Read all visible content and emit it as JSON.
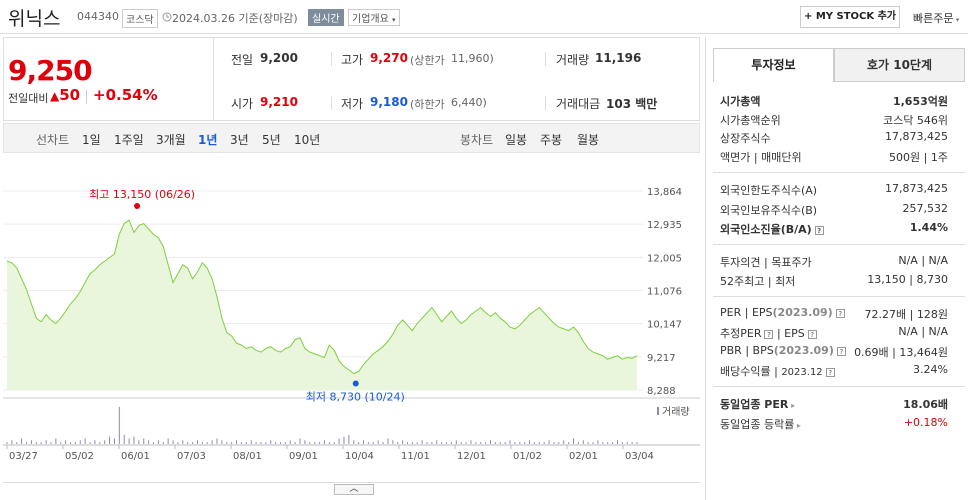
{
  "header": {
    "stock_name": "위닉스",
    "stock_code": "044340",
    "market_badge": "코스닥",
    "date_text": "2024.03.26  기준(장마감)",
    "realtime_label": "실시간",
    "company_info_label": "기업개요",
    "my_stock_label": "+ MY STOCK 추가",
    "quick_order_label": "빠른주문"
  },
  "price": {
    "current": "9,250",
    "change_label": "전일대비",
    "change_value": "50",
    "change_pct": "+0.54%"
  },
  "quotes": {
    "prev_close_label": "전일",
    "prev_close": "9,200",
    "high_label": "고가",
    "high": "9,270",
    "upper_limit_label": "(상한가",
    "upper_limit": "11,960)",
    "volume_label": "거래량",
    "volume": "11,196",
    "open_label": "시가",
    "open": "9,210",
    "low_label": "저가",
    "low": "9,180",
    "lower_limit_label": "(하한가",
    "lower_limit": "6,440)",
    "amount_label": "거래대금",
    "amount": "103 백만"
  },
  "period_bar": {
    "line_chart_label": "선차트",
    "periods": [
      "1일",
      "1주일",
      "3개월",
      "1년",
      "3년",
      "5년",
      "10년"
    ],
    "active_period": "1년",
    "candle_label": "봉차트",
    "candles": [
      "일봉",
      "주봉",
      "월봉"
    ]
  },
  "chart_data": {
    "type": "area",
    "title": "",
    "y_ticks": [
      "13,864",
      "12,935",
      "12,005",
      "11,076",
      "10,147",
      "9,217",
      "8,288"
    ],
    "ylim": [
      8288,
      13864
    ],
    "x_ticks": [
      "03/27",
      "05/02",
      "06/01",
      "07/03",
      "08/01",
      "09/01",
      "10/04",
      "11/01",
      "12/01",
      "01/02",
      "02/01",
      "03/04"
    ],
    "high_annotation": "최고 13,150 (06/26)",
    "low_annotation": "최저 8,730 (10/24)",
    "volume_legend": "거래량",
    "series": [
      {
        "values": [
          11900,
          11850,
          11700,
          11400,
          11100,
          10700,
          10300,
          10200,
          10400,
          10250,
          10150,
          10300,
          10500,
          10700,
          10850,
          11050,
          11300,
          11550,
          11650,
          11800,
          11900,
          12000,
          12100,
          12650,
          12950,
          13050,
          12700,
          12900,
          12950,
          12800,
          12650,
          12550,
          12300,
          11800,
          11300,
          11550,
          11800,
          11700,
          11400,
          11600,
          11850,
          11700,
          11400,
          10900,
          10300,
          9900,
          9800,
          9600,
          9550,
          9450,
          9500,
          9400,
          9350,
          9450,
          9500,
          9400,
          9350,
          9450,
          9500,
          9700,
          9750,
          9450,
          9350,
          9300,
          9250,
          9200,
          9550,
          9400,
          9100,
          8950,
          8850,
          8750,
          8800,
          9000,
          9150,
          9300,
          9400,
          9500,
          9650,
          9850,
          10100,
          10250,
          10100,
          9950,
          10150,
          10300,
          10450,
          10600,
          10400,
          10200,
          10350,
          10500,
          10300,
          10150,
          10250,
          10400,
          10500,
          10600,
          10450,
          10350,
          10450,
          10300,
          10200,
          10050,
          10000,
          10100,
          10250,
          10400,
          10500,
          10600,
          10450,
          10300,
          10150,
          10050,
          10000,
          9950,
          10050,
          9900,
          9650,
          9450,
          9350,
          9300,
          9250,
          9150,
          9200,
          9250,
          9150,
          9200,
          9180,
          9250
        ]
      },
      {
        "values": [
          1,
          2,
          1,
          3,
          1,
          2,
          1,
          1,
          2,
          1,
          3,
          1,
          2,
          1,
          1,
          2,
          3,
          1,
          2,
          1,
          2,
          4,
          3,
          20,
          5,
          3,
          4,
          2,
          3,
          2,
          1,
          2,
          1,
          3,
          2,
          1,
          2,
          1,
          1,
          2,
          1,
          1,
          2,
          3,
          2,
          1,
          1,
          2,
          1,
          1,
          2,
          1,
          1,
          1,
          2,
          1,
          1,
          1,
          2,
          1,
          3,
          2,
          1,
          1,
          1,
          2,
          1,
          1,
          3,
          4,
          5,
          2,
          1,
          2,
          1,
          1,
          2,
          1,
          3,
          2,
          1,
          2,
          1,
          1,
          1,
          2,
          1,
          1,
          2,
          1,
          1,
          1,
          2,
          1,
          1,
          2,
          1,
          1,
          1,
          2,
          1,
          1,
          1,
          2,
          1,
          1,
          1,
          2,
          1,
          1,
          1,
          2,
          1,
          1,
          2,
          1,
          3,
          1,
          2,
          1,
          1,
          2,
          1,
          1,
          1,
          2,
          1,
          1,
          1,
          1
        ]
      }
    ]
  },
  "side_panel": {
    "tab_invest": "투자정보",
    "tab_orderbook": "호가 10단계",
    "market_cap_label": "시가총액",
    "market_cap": "1,653억원",
    "market_cap_rank_label": "시가총액순위",
    "market_cap_rank": "코스닥 546위",
    "shares_label": "상장주식수",
    "shares": "17,873,425",
    "par_label": "액면가",
    "par_sep": "매매단위",
    "par_value": "500원",
    "trade_unit": "1주",
    "foreign_limit_label": "외국인한도주식수(A)",
    "foreign_limit": "17,873,425",
    "foreign_hold_label": "외국인보유주식수(B)",
    "foreign_hold": "257,532",
    "foreign_ratio_label": "외국인소진율(B/A)",
    "foreign_ratio": "1.44%",
    "opinion_label": "투자의견",
    "target_label": "목표주가",
    "opinion": "N/A",
    "target": "N/A",
    "week52_label": "52주최고",
    "week52_low_label": "최저",
    "week52_high": "13,150",
    "week52_low": "8,730",
    "per_label": "PER",
    "eps_label": "EPS",
    "eps_period": "(2023.09)",
    "per": "72.27배",
    "eps": "128원",
    "est_per_label": "추정PER",
    "est_eps_label": "EPS",
    "est_per": "N/A",
    "est_eps": "N/A",
    "pbr_label": "PBR",
    "bps_label": "BPS",
    "bps_period": "(2023.09)",
    "pbr": "0.69배",
    "bps": "13,464원",
    "dividend_label": "배당수익률",
    "dividend_period": "2023.12",
    "dividend": "3.24%",
    "sector_per_label": "동일업종 PER",
    "sector_per": "18.06배",
    "sector_rate_label": "동일업종 등락률",
    "sector_rate": "+0.18%"
  },
  "colors": {
    "up": "#e0000b",
    "down": "#1a5ad8",
    "line": "#7dcf3c",
    "fill": "#e9f6dc"
  }
}
